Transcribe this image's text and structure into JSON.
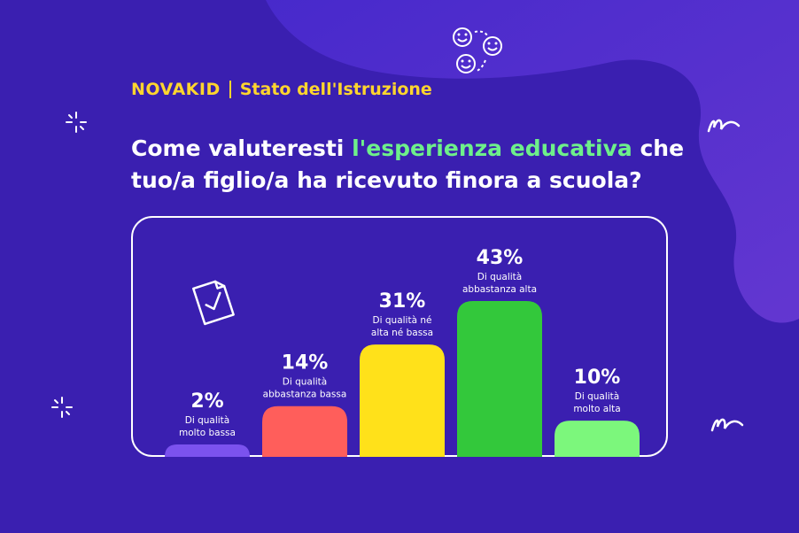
{
  "header": {
    "logo": "NOVAKID",
    "subtitle": "Stato dell'Istruzione"
  },
  "question": {
    "before": "Come valuteresti ",
    "highlight": "l'esperienza educativa",
    "after": " che tuo/a figlio/a ha ricevuto finora a scuola?"
  },
  "colors": {
    "background": "#3a1fb0",
    "highlight": "#6ef08a",
    "logo": "#ffd52e"
  },
  "icons": [
    "smiley-icon",
    "document-check-icon",
    "sparkle-icon",
    "squiggle-icon"
  ],
  "chart_data": {
    "type": "bar",
    "categories": [
      "Di qualità molto bassa",
      "Di qualità abbastanza bassa",
      "Di qualità né alta né bassa",
      "Di qualità abbastanza alta",
      "Di qualità molto alta"
    ],
    "category_lines": [
      [
        "Di qualità",
        "molto bassa"
      ],
      [
        "Di qualità",
        "abbastanza bassa"
      ],
      [
        "Di qualità né",
        "alta né bassa"
      ],
      [
        "Di qualità",
        "abbastanza alta"
      ],
      [
        "Di qualità",
        "molto alta"
      ]
    ],
    "values": [
      2,
      14,
      31,
      43,
      10
    ],
    "value_labels": [
      "2%",
      "14%",
      "31%",
      "43%",
      "10%"
    ],
    "colors": [
      "#7b52ee",
      "#ff5e5b",
      "#ffe11a",
      "#33c83b",
      "#7cf77c"
    ],
    "unit": "%",
    "ylim": [
      0,
      43
    ],
    "grid": false
  }
}
